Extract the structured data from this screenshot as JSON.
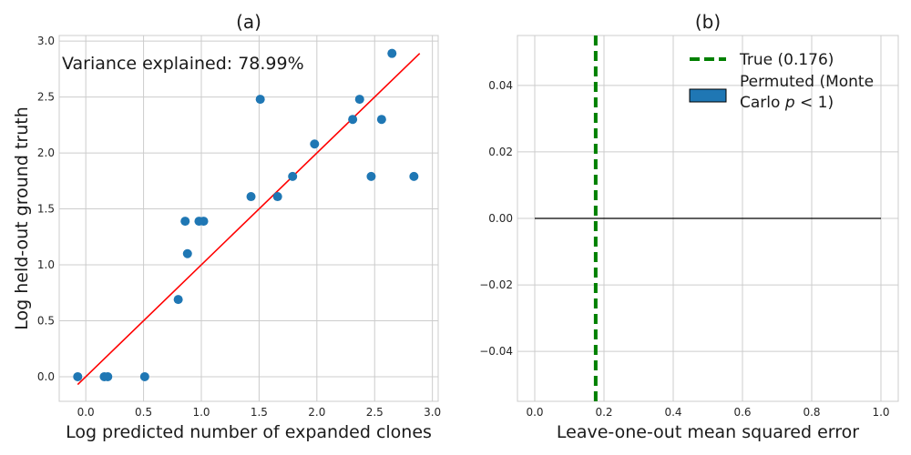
{
  "colors": {
    "scatter": "#1f77b4",
    "fit_line": "#ff0000",
    "true_line": "#008000",
    "permuted_fill": "#1f77b4",
    "zero_line": "#000000"
  },
  "chart_data": [
    {
      "type": "scatter",
      "title": "(a)",
      "xlabel": "Log predicted number of expanded clones",
      "ylabel": "Log held-out ground truth",
      "annotation": "Variance explained: 78.99%",
      "xlim": [
        -0.23,
        3.05
      ],
      "ylim": [
        -0.22,
        3.05
      ],
      "xticks": [
        0.0,
        0.5,
        1.0,
        1.5,
        2.0,
        2.5,
        3.0
      ],
      "yticks": [
        0.0,
        0.5,
        1.0,
        1.5,
        2.0,
        2.5,
        3.0
      ],
      "xtick_labels": [
        "0.0",
        "0.5",
        "1.0",
        "1.5",
        "2.0",
        "2.5",
        "3.0"
      ],
      "ytick_labels": [
        "0.0",
        "0.5",
        "1.0",
        "1.5",
        "2.0",
        "2.5",
        "3.0"
      ],
      "grid": true,
      "points": [
        {
          "x": -0.07,
          "y": 0.0
        },
        {
          "x": 0.16,
          "y": 0.0
        },
        {
          "x": 0.19,
          "y": 0.0
        },
        {
          "x": 0.51,
          "y": 0.0
        },
        {
          "x": 0.8,
          "y": 0.69
        },
        {
          "x": 0.88,
          "y": 1.1
        },
        {
          "x": 0.86,
          "y": 1.39
        },
        {
          "x": 0.98,
          "y": 1.39
        },
        {
          "x": 1.02,
          "y": 1.39
        },
        {
          "x": 1.43,
          "y": 1.61
        },
        {
          "x": 1.51,
          "y": 2.48
        },
        {
          "x": 1.66,
          "y": 1.61
        },
        {
          "x": 1.79,
          "y": 1.79
        },
        {
          "x": 1.98,
          "y": 2.08
        },
        {
          "x": 2.31,
          "y": 2.3
        },
        {
          "x": 2.37,
          "y": 2.48
        },
        {
          "x": 2.47,
          "y": 1.79
        },
        {
          "x": 2.56,
          "y": 2.3
        },
        {
          "x": 2.65,
          "y": 2.89
        },
        {
          "x": 2.84,
          "y": 1.79
        }
      ],
      "fit_line": {
        "x": [
          -0.07,
          2.89
        ],
        "y": [
          -0.07,
          2.89
        ]
      }
    },
    {
      "type": "histogram",
      "title": "(b)",
      "xlabel": "Leave-one-out mean squared error",
      "ylabel": "",
      "xlim": [
        -0.05,
        1.05
      ],
      "ylim": [
        -0.055,
        0.055
      ],
      "xticks": [
        0.0,
        0.2,
        0.4,
        0.6,
        0.8,
        1.0
      ],
      "yticks": [
        -0.04,
        -0.02,
        0.0,
        0.02,
        0.04
      ],
      "xtick_labels": [
        "0.0",
        "0.2",
        "0.4",
        "0.6",
        "0.8",
        "1.0"
      ],
      "ytick_labels": [
        "−0.04",
        "−0.02",
        "0.00",
        "0.02",
        "0.04"
      ],
      "grid": true,
      "true_value": 0.176,
      "permuted_baseline": {
        "x": [
          0.0,
          1.0
        ],
        "y": 0.0
      },
      "legend": {
        "placement": "top-right",
        "entries": [
          {
            "label": "True (0.176)",
            "style": "dashed-line"
          },
          {
            "label_line1": "Permuted (Monte",
            "label_line2_prefix": "Carlo ",
            "label_line2_var": "p",
            "label_line2_suffix": " < 1)",
            "style": "patch"
          }
        ]
      }
    }
  ]
}
